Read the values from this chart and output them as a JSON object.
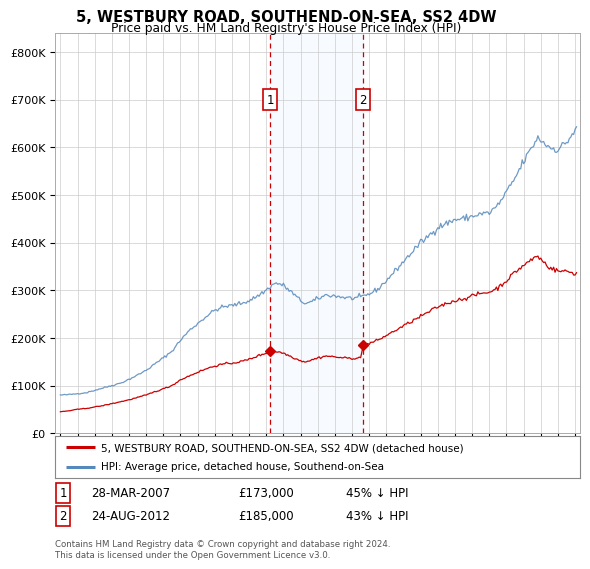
{
  "title": "5, WESTBURY ROAD, SOUTHEND-ON-SEA, SS2 4DW",
  "subtitle": "Price paid vs. HM Land Registry's House Price Index (HPI)",
  "legend_label_red": "5, WESTBURY ROAD, SOUTHEND-ON-SEA, SS2 4DW (detached house)",
  "legend_label_blue": "HPI: Average price, detached house, Southend-on-Sea",
  "footer": "Contains HM Land Registry data © Crown copyright and database right 2024.\nThis data is licensed under the Open Government Licence v3.0.",
  "transaction1_date": "28-MAR-2007",
  "transaction1_price": "£173,000",
  "transaction1_pct": "45% ↓ HPI",
  "transaction2_date": "24-AUG-2012",
  "transaction2_price": "£185,000",
  "transaction2_pct": "43% ↓ HPI",
  "transaction1_year": 2007.23,
  "transaction1_value": 173000,
  "transaction2_year": 2012.65,
  "transaction2_value": 185000,
  "ylim": [
    0,
    840000
  ],
  "xlim_start": 1994.7,
  "xlim_end": 2025.3,
  "color_red": "#cc0000",
  "color_blue": "#5588bb",
  "color_shade": "#ddeeff",
  "background_color": "#ffffff",
  "grid_color": "#cccccc"
}
